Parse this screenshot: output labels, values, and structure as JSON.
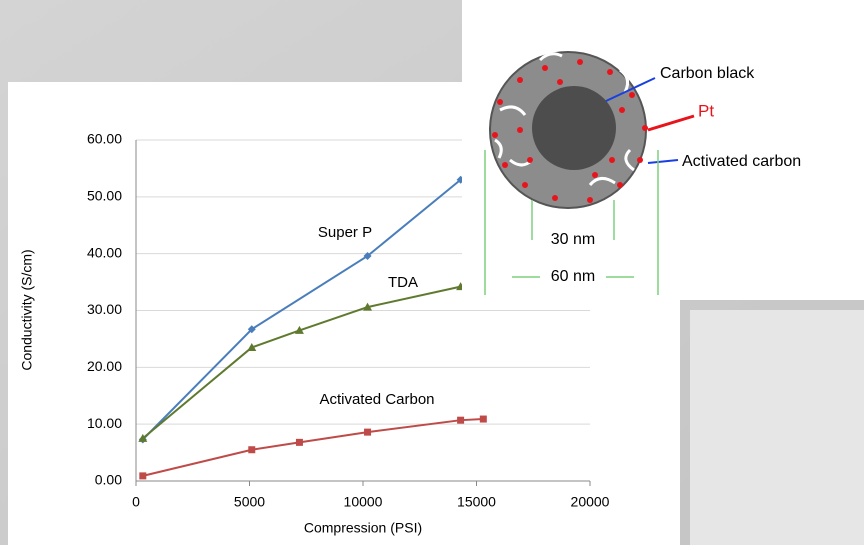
{
  "chart_data": {
    "type": "line",
    "x_label": "Compression (PSI)",
    "y_label": "Conductivity (S/cm)",
    "xlim": [
      0,
      20000
    ],
    "xticks": [
      0,
      5000,
      10000,
      15000,
      20000
    ],
    "ylim": [
      0,
      60
    ],
    "yticks": [
      {
        "value": 0,
        "label": "0.00"
      },
      {
        "value": 10,
        "label": "10.00"
      },
      {
        "value": 20,
        "label": "20.00"
      },
      {
        "value": 30,
        "label": "30.00"
      },
      {
        "value": 40,
        "label": "40.00"
      },
      {
        "value": 50,
        "label": "50.00"
      },
      {
        "value": 60,
        "label": "60.00"
      }
    ],
    "series": [
      {
        "name": "Super P",
        "color": "#4a7ebb",
        "marker": "diamond",
        "x": [
          300,
          5100,
          10200,
          14300
        ],
        "values": [
          7.3,
          26.7,
          39.6,
          53.0
        ]
      },
      {
        "name": "TDA",
        "color": "#5f7a2e",
        "marker": "triangle",
        "x": [
          300,
          5100,
          7200,
          10200,
          14300
        ],
        "values": [
          7.5,
          23.5,
          26.5,
          30.6,
          34.2
        ]
      },
      {
        "name": "Activated Carbon",
        "color": "#be4b48",
        "marker": "square",
        "x": [
          300,
          5100,
          7200,
          10200,
          14300,
          15300
        ],
        "values": [
          0.9,
          5.5,
          6.8,
          8.6,
          10.7,
          10.9
        ]
      }
    ]
  },
  "diagram": {
    "labels": {
      "carbon_black": "Carbon black",
      "pt": "Pt",
      "activated_carbon": "Activated carbon",
      "inner_size": "30 nm",
      "outer_size": "60 nm"
    }
  }
}
